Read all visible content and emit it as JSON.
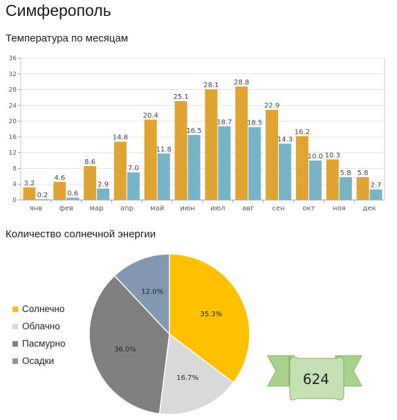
{
  "city": "Симферополь",
  "charts": {
    "temperature": {
      "type": "bar",
      "title": "Температура по месяцам",
      "categories": [
        "янв",
        "фев",
        "мар",
        "апр",
        "май",
        "июн",
        "июл",
        "авг",
        "сен",
        "окт",
        "ноя",
        "дек"
      ],
      "series": [
        {
          "values": [
            3.2,
            4.6,
            8.6,
            14.8,
            20.4,
            25.1,
            28.1,
            28.8,
            22.9,
            16.2,
            10.3,
            5.8
          ],
          "labels": [
            "3.2",
            "4.6",
            "8.6",
            "14.8",
            "20.4",
            "25.1",
            "28.1",
            "28.8",
            "22.9",
            "16.2",
            "10.3",
            "5.8"
          ],
          "color": "#e0a432"
        },
        {
          "values": [
            0.2,
            0.6,
            2.9,
            7.0,
            11.8,
            16.5,
            18.7,
            18.5,
            14.3,
            10.0,
            5.8,
            2.7
          ],
          "labels": [
            "0.2",
            "0.6",
            "2.9",
            "7.0",
            "11.8",
            "16.5",
            "18.7",
            "18.5",
            "14.3",
            "10.0",
            "5.8",
            "2.7"
          ],
          "color": "#79b4c6"
        }
      ],
      "ylim": [
        0,
        36
      ],
      "yticks": [
        0,
        4,
        8,
        12,
        16,
        20,
        24,
        28,
        32,
        36
      ],
      "grid": true
    },
    "sunshine": {
      "type": "pie",
      "title": "Количество солнечной энергии",
      "slices": [
        {
          "name": "Солнечно",
          "value": 35.3,
          "label": "35.3%",
          "color": "#ffc000"
        },
        {
          "name": "Облачно",
          "value": 16.7,
          "label": "16.7%",
          "color": "#d9d9d9"
        },
        {
          "name": "Пасмурно",
          "value": 36.0,
          "label": "36.0%",
          "color": "#808080"
        },
        {
          "name": "Осадки",
          "value": 12.0,
          "label": "12.0%",
          "color": "#8497b0"
        }
      ],
      "legend_position": "left"
    }
  },
  "badge": {
    "value": "624",
    "icon": "ribbon-banner"
  }
}
